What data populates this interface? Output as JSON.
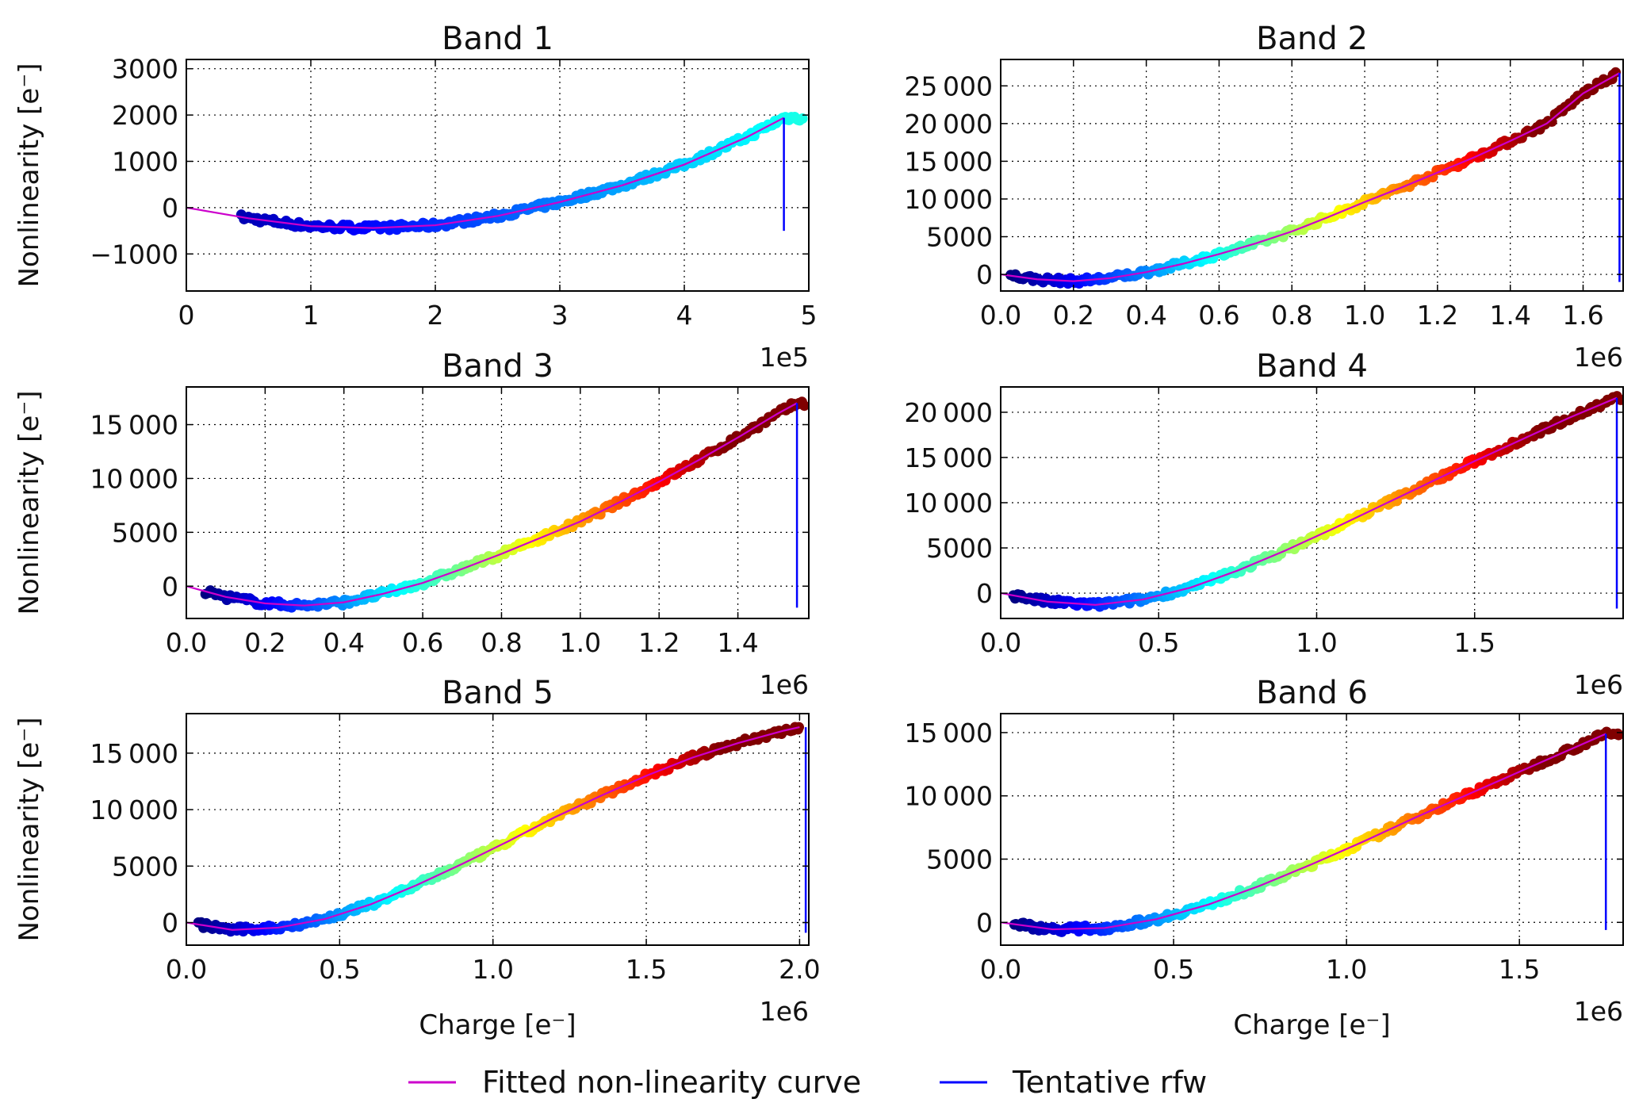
{
  "legend": {
    "items": [
      {
        "label": "Fitted non-linearity curve",
        "color": "#cc00cc"
      },
      {
        "label": "Tentative rfw",
        "color": "#0000ff"
      }
    ]
  },
  "chart_data": [
    {
      "type": "scatter",
      "title": "Band 1",
      "xlabel": "",
      "ylabel": "Nonlinearity [e⁻]",
      "x_exponent": "1e5",
      "xlim": [
        0,
        500000
      ],
      "ylim": [
        -1800,
        3200
      ],
      "xticks": [
        0,
        100000,
        200000,
        300000,
        400000,
        500000
      ],
      "xtick_labels": [
        "0",
        "1",
        "2",
        "3",
        "4",
        "5"
      ],
      "yticks": [
        -1000,
        0,
        1000,
        2000,
        3000
      ],
      "ytick_labels": [
        "−1000",
        "0",
        "1000",
        "2000",
        "3000"
      ],
      "scatter_x_range": [
        45000,
        495000
      ],
      "curve": {
        "x": [
          0,
          50000,
          100000,
          150000,
          200000,
          250000,
          300000,
          350000,
          400000,
          450000,
          480000
        ],
        "y": [
          0,
          -230,
          -400,
          -440,
          -380,
          -180,
          120,
          480,
          930,
          1520,
          1940
        ]
      },
      "rfw": {
        "x": 480000,
        "y_top": 1940,
        "y_bottom": -500
      },
      "grid": true
    },
    {
      "type": "scatter",
      "title": "Band 2",
      "xlabel": "",
      "ylabel": "",
      "x_exponent": "1e6",
      "xlim": [
        0,
        1710000
      ],
      "ylim": [
        -2200,
        28500
      ],
      "xticks": [
        0,
        200000,
        400000,
        600000,
        800000,
        1000000,
        1200000,
        1400000,
        1600000
      ],
      "xtick_labels": [
        "0.0",
        "0.2",
        "0.4",
        "0.6",
        "0.8",
        "1.0",
        "1.2",
        "1.4",
        "1.6"
      ],
      "yticks": [
        0,
        5000,
        10000,
        15000,
        20000,
        25000
      ],
      "ytick_labels": [
        "0",
        "5000",
        "10 000",
        "15 000",
        "20 000",
        "25 000"
      ],
      "scatter_x_range": [
        30000,
        1690000
      ],
      "curve": {
        "x": [
          0,
          100000,
          200000,
          300000,
          400000,
          500000,
          600000,
          700000,
          800000,
          900000,
          1000000,
          1100000,
          1200000,
          1300000,
          1400000,
          1500000,
          1600000,
          1700000
        ],
        "y": [
          0,
          -650,
          -900,
          -500,
          300,
          1400,
          2700,
          4100,
          5700,
          7600,
          9600,
          11500,
          13500,
          15500,
          17700,
          20000,
          24000,
          26700
        ]
      },
      "rfw": {
        "x": 1700000,
        "y_top": 26700,
        "y_bottom": -1000
      },
      "grid": true
    },
    {
      "type": "scatter",
      "title": "Band 3",
      "xlabel": "",
      "ylabel": "Nonlinearity [e⁻]",
      "x_exponent": "1e6",
      "xlim": [
        0,
        1580000
      ],
      "ylim": [
        -3000,
        18500
      ],
      "xticks": [
        0,
        200000,
        400000,
        600000,
        800000,
        1000000,
        1200000,
        1400000
      ],
      "xtick_labels": [
        "0.0",
        "0.2",
        "0.4",
        "0.6",
        "0.8",
        "1.0",
        "1.2",
        "1.4"
      ],
      "yticks": [
        0,
        5000,
        10000,
        15000
      ],
      "ytick_labels": [
        "0",
        "5000",
        "10 000",
        "15 000"
      ],
      "scatter_x_range": [
        50000,
        1570000
      ],
      "curve": {
        "x": [
          0,
          100000,
          200000,
          300000,
          400000,
          500000,
          600000,
          700000,
          800000,
          900000,
          1000000,
          1100000,
          1200000,
          1300000,
          1400000,
          1500000,
          1550000
        ],
        "y": [
          0,
          -1000,
          -1600,
          -1800,
          -1500,
          -700,
          300,
          1600,
          3000,
          4500,
          6000,
          7800,
          9700,
          11700,
          13800,
          16000,
          17000
        ]
      },
      "rfw": {
        "x": 1550000,
        "y_top": 17000,
        "y_bottom": -2000
      },
      "grid": true
    },
    {
      "type": "scatter",
      "title": "Band 4",
      "xlabel": "",
      "ylabel": "",
      "x_exponent": "1e6",
      "xlim": [
        0,
        1970000
      ],
      "ylim": [
        -2800,
        22800
      ],
      "xticks": [
        0,
        500000,
        1000000,
        1500000
      ],
      "xtick_labels": [
        "0.0",
        "0.5",
        "1.0",
        "1.5"
      ],
      "yticks": [
        0,
        5000,
        10000,
        15000,
        20000
      ],
      "ytick_labels": [
        "0",
        "5000",
        "10 000",
        "15 000",
        "20 000"
      ],
      "scatter_x_range": [
        40000,
        1960000
      ],
      "curve": {
        "x": [
          0,
          150000,
          300000,
          450000,
          600000,
          750000,
          900000,
          1050000,
          1200000,
          1350000,
          1500000,
          1650000,
          1800000,
          1950000
        ],
        "y": [
          0,
          -950,
          -1300,
          -700,
          600,
          2500,
          4700,
          7100,
          9600,
          12100,
          14600,
          17000,
          19400,
          21600
        ]
      },
      "rfw": {
        "x": 1950000,
        "y_top": 21600,
        "y_bottom": -1700
      },
      "grid": true
    },
    {
      "type": "scatter",
      "title": "Band 5",
      "xlabel": "Charge [e⁻]",
      "ylabel": "Nonlinearity [e⁻]",
      "x_exponent": "1e6",
      "xlim": [
        0,
        2030000
      ],
      "ylim": [
        -2000,
        18500
      ],
      "xticks": [
        0,
        500000,
        1000000,
        1500000,
        2000000
      ],
      "xtick_labels": [
        "0.0",
        "0.5",
        "1.0",
        "1.5",
        "2.0"
      ],
      "yticks": [
        0,
        5000,
        10000,
        15000
      ],
      "ytick_labels": [
        "0",
        "5000",
        "10 000",
        "15 000"
      ],
      "scatter_x_range": [
        40000,
        2000000
      ],
      "curve": {
        "x": [
          0,
          150000,
          300000,
          450000,
          600000,
          750000,
          900000,
          1050000,
          1200000,
          1350000,
          1500000,
          1650000,
          1800000,
          1950000,
          2000000
        ],
        "y": [
          0,
          -650,
          -450,
          300,
          1600,
          3300,
          5200,
          7200,
          9300,
          11200,
          13000,
          14600,
          15900,
          17000,
          17300
        ]
      },
      "rfw": {
        "x": 2020000,
        "y_top": 17300,
        "y_bottom": -900
      },
      "grid": true
    },
    {
      "type": "scatter",
      "title": "Band 6",
      "xlabel": "Charge [e⁻]",
      "ylabel": "",
      "x_exponent": "1e6",
      "xlim": [
        0,
        1800000
      ],
      "ylim": [
        -1800,
        16500
      ],
      "xticks": [
        0,
        500000,
        1000000,
        1500000
      ],
      "xtick_labels": [
        "0.0",
        "0.5",
        "1.0",
        "1.5"
      ],
      "yticks": [
        0,
        5000,
        10000,
        15000
      ],
      "ytick_labels": [
        "0",
        "5000",
        "10 000",
        "15 000"
      ],
      "scatter_x_range": [
        40000,
        1790000
      ],
      "curve": {
        "x": [
          0,
          150000,
          300000,
          450000,
          600000,
          750000,
          900000,
          1050000,
          1200000,
          1350000,
          1500000,
          1650000,
          1750000
        ],
        "y": [
          0,
          -550,
          -450,
          250,
          1400,
          2900,
          4600,
          6400,
          8300,
          10100,
          11900,
          13700,
          14900
        ]
      },
      "rfw": {
        "x": 1750000,
        "y_top": 14900,
        "y_bottom": -600
      },
      "grid": true
    }
  ]
}
